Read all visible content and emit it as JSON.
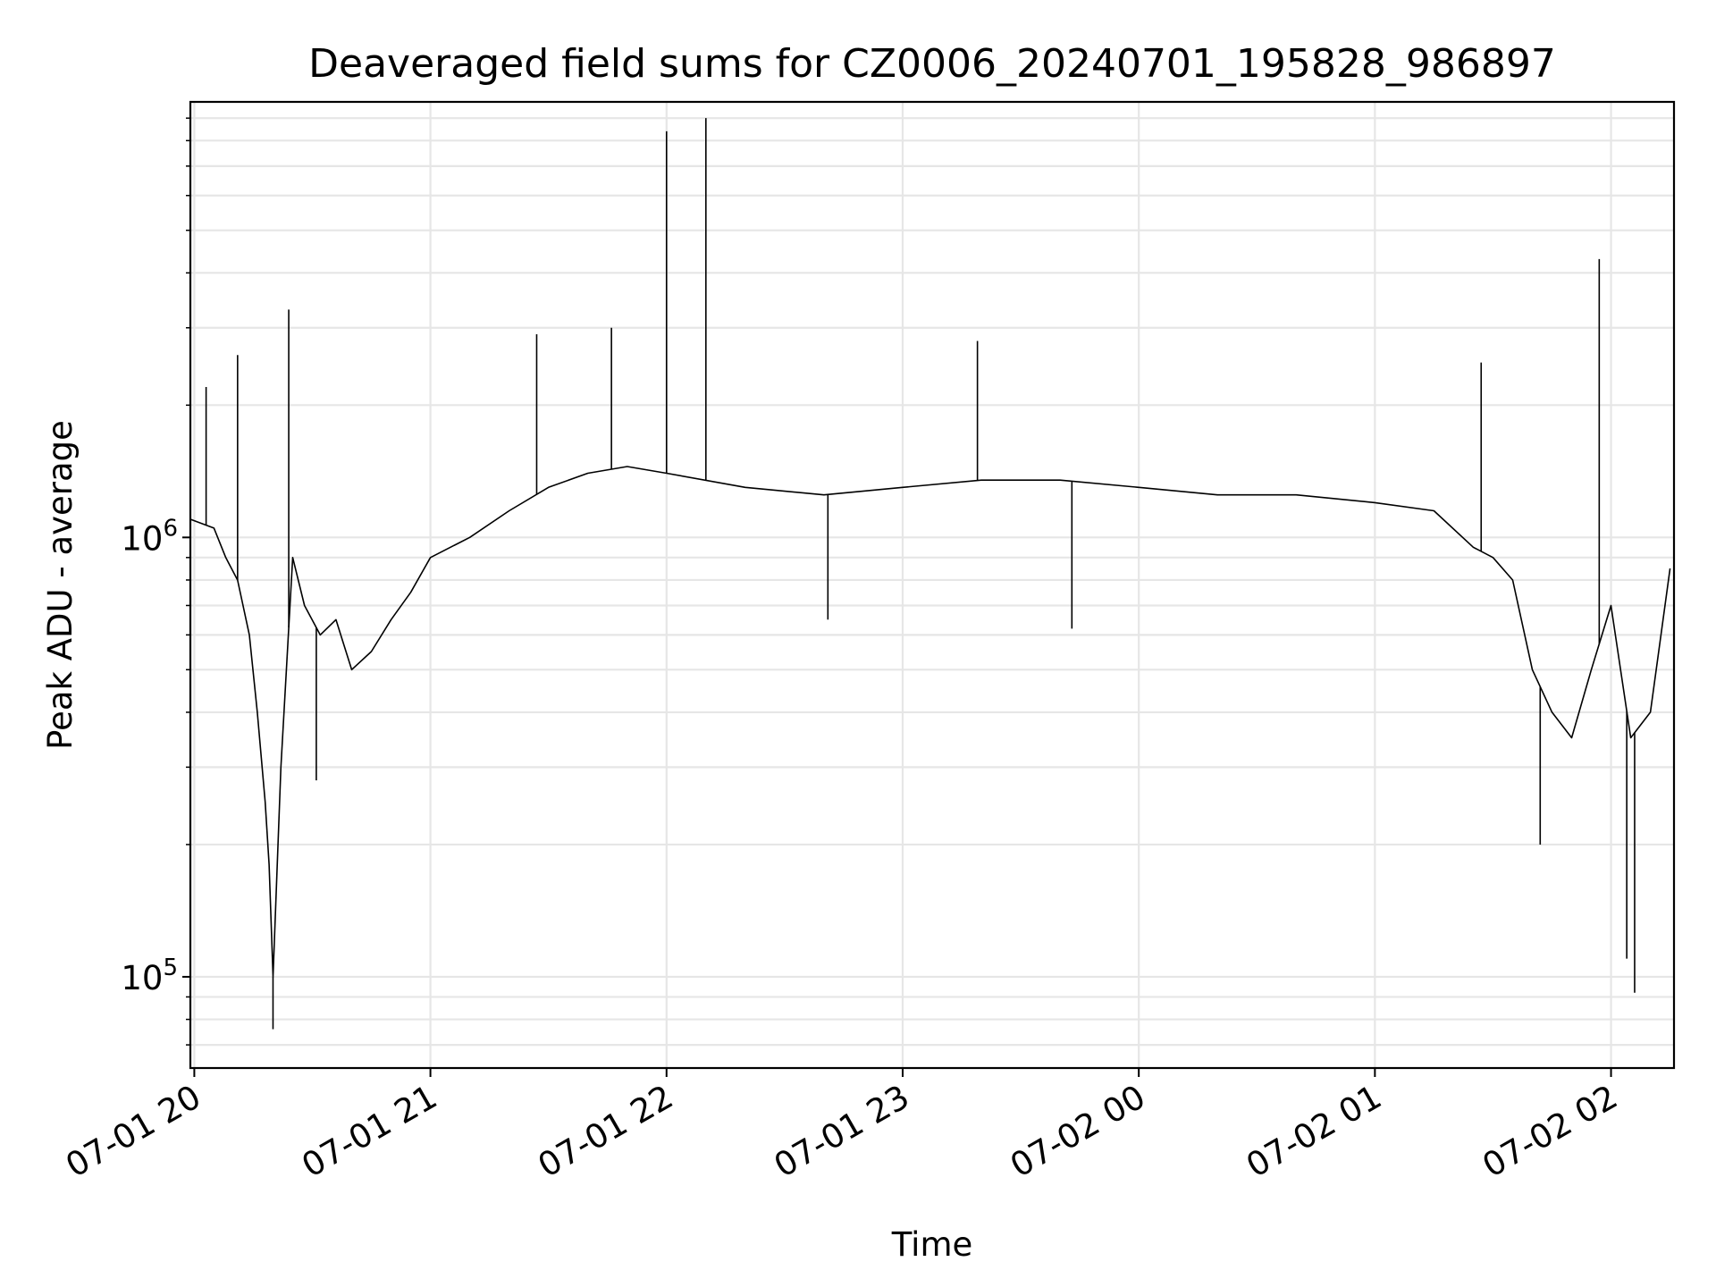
{
  "chart_data": {
    "type": "line",
    "title": "Deaveraged field sums for CZ0006_20240701_195828_986897",
    "xlabel": "Time",
    "ylabel": "Peak ADU - average",
    "y_scale": "log",
    "x_range": [
      "2024-07-01 19:59:00",
      "2024-07-02 02:16:00"
    ],
    "ylim": [
      62000,
      9800000
    ],
    "grid": {
      "major": true,
      "minor_y": true,
      "color": "#e6e6e6"
    },
    "x_ticks": [
      {
        "value": "2024-07-01 20:00",
        "label": "07-01 20"
      },
      {
        "value": "2024-07-01 21:00",
        "label": "07-01 21"
      },
      {
        "value": "2024-07-01 22:00",
        "label": "07-01 22"
      },
      {
        "value": "2024-07-01 23:00",
        "label": "07-01 23"
      },
      {
        "value": "2024-07-02 00:00",
        "label": "07-02 00"
      },
      {
        "value": "2024-07-02 01:00",
        "label": "07-02 01"
      },
      {
        "value": "2024-07-02 02:00",
        "label": "07-02 02"
      }
    ],
    "y_ticks": [
      {
        "value": 100000,
        "base": "10",
        "exp": "5"
      },
      {
        "value": 1000000,
        "base": "10",
        "exp": "6"
      }
    ],
    "series": [
      {
        "color": "#000000",
        "x": [
          "2024-07-01 19:59:00",
          "2024-07-01 20:05:00",
          "2024-07-01 20:08:00",
          "2024-07-01 20:11:00",
          "2024-07-01 20:14:00",
          "2024-07-01 20:16:00",
          "2024-07-01 20:18:00",
          "2024-07-01 20:19:00",
          "2024-07-01 20:20:00",
          "2024-07-01 20:22:00",
          "2024-07-01 20:25:00",
          "2024-07-01 20:28:00",
          "2024-07-01 20:32:00",
          "2024-07-01 20:36:00",
          "2024-07-01 20:40:00",
          "2024-07-01 20:45:00",
          "2024-07-01 20:50:00",
          "2024-07-01 20:55:00",
          "2024-07-01 21:00:00",
          "2024-07-01 21:10:00",
          "2024-07-01 21:20:00",
          "2024-07-01 21:30:00",
          "2024-07-01 21:40:00",
          "2024-07-01 21:50:00",
          "2024-07-01 22:00:00",
          "2024-07-01 22:20:00",
          "2024-07-01 22:40:00",
          "2024-07-01 23:00:00",
          "2024-07-01 23:20:00",
          "2024-07-01 23:40:00",
          "2024-07-02 00:00:00",
          "2024-07-02 00:20:00",
          "2024-07-02 00:40:00",
          "2024-07-02 01:00:00",
          "2024-07-02 01:15:00",
          "2024-07-02 01:25:00",
          "2024-07-02 01:30:00",
          "2024-07-02 01:35:00",
          "2024-07-02 01:40:00",
          "2024-07-02 01:45:00",
          "2024-07-02 01:50:00",
          "2024-07-02 01:55:00",
          "2024-07-02 02:00:00",
          "2024-07-02 02:05:00",
          "2024-07-02 02:10:00",
          "2024-07-02 02:15:00"
        ],
        "y": [
          1100000,
          1050000,
          900000,
          800000,
          600000,
          400000,
          250000,
          180000,
          100000,
          300000,
          900000,
          700000,
          600000,
          650000,
          500000,
          550000,
          650000,
          750000,
          900000,
          1000000,
          1150000,
          1300000,
          1400000,
          1450000,
          1400000,
          1300000,
          1250000,
          1300000,
          1350000,
          1350000,
          1300000,
          1250000,
          1250000,
          1200000,
          1150000,
          950000,
          900000,
          800000,
          500000,
          400000,
          350000,
          500000,
          700000,
          350000,
          400000,
          850000
        ],
        "spikes": [
          {
            "x": "2024-07-01 20:03:00",
            "y": 2200000
          },
          {
            "x": "2024-07-01 20:11:00",
            "y": 2600000
          },
          {
            "x": "2024-07-01 20:20:00",
            "y": 76000
          },
          {
            "x": "2024-07-01 20:24:00",
            "y": 3300000
          },
          {
            "x": "2024-07-01 20:31:00",
            "y": 280000
          },
          {
            "x": "2024-07-01 21:27:00",
            "y": 2900000
          },
          {
            "x": "2024-07-01 21:46:00",
            "y": 3000000
          },
          {
            "x": "2024-07-01 22:00:00",
            "y": 8400000
          },
          {
            "x": "2024-07-01 22:10:00",
            "y": 9000000
          },
          {
            "x": "2024-07-01 22:41:00",
            "y": 650000
          },
          {
            "x": "2024-07-01 23:19:00",
            "y": 2800000
          },
          {
            "x": "2024-07-01 23:43:00",
            "y": 620000
          },
          {
            "x": "2024-07-02 01:27:00",
            "y": 2500000
          },
          {
            "x": "2024-07-02 01:42:00",
            "y": 200000
          },
          {
            "x": "2024-07-02 01:57:00",
            "y": 4300000
          },
          {
            "x": "2024-07-02 02:04:00",
            "y": 110000
          },
          {
            "x": "2024-07-02 02:06:00",
            "y": 92000
          }
        ]
      }
    ]
  }
}
